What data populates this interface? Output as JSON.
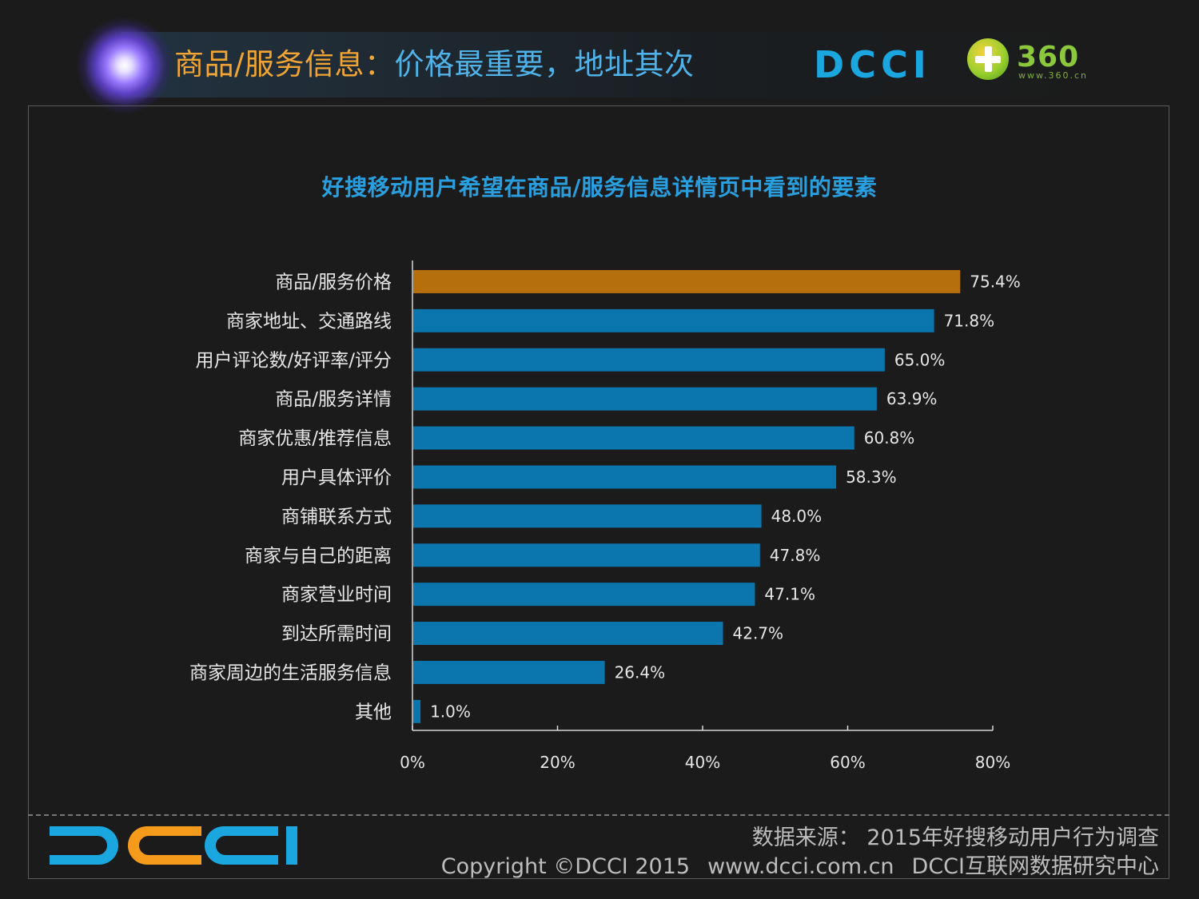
{
  "header": {
    "title_part1": "商品/服务信息：",
    "title_part2": "价格最重要，地址其次",
    "brand_dcci": "DCCI",
    "brand_360": "360",
    "brand_360_url": "www.360.cn"
  },
  "colors": {
    "highlight_bar": "#b56f0c",
    "default_bar": "#0b75ad",
    "title_orange": "#f2a532",
    "title_blue": "#4fb3ea"
  },
  "chart_data": {
    "type": "bar",
    "orientation": "horizontal",
    "title": "好搜移动用户希望在商品/服务信息详情页中看到的要素",
    "categories": [
      "商品/服务价格",
      "商家地址、交通路线",
      "用户评论数/好评率/评分",
      "商品/服务详情",
      "商家优惠/推荐信息",
      "用户具体评价",
      "商铺联系方式",
      "商家与自己的距离",
      "商家营业时间",
      "到达所需时间",
      "商家周边的生活服务信息",
      "其他"
    ],
    "values": [
      75.4,
      71.8,
      65.0,
      63.9,
      60.8,
      58.3,
      48.0,
      47.8,
      47.1,
      42.7,
      26.4,
      1.0
    ],
    "value_labels": [
      "75.4%",
      "71.8%",
      "65.0%",
      "63.9%",
      "60.8%",
      "58.3%",
      "48.0%",
      "47.8%",
      "47.1%",
      "42.7%",
      "26.4%",
      "1.0%"
    ],
    "highlight_index": 0,
    "xlim": [
      0,
      80
    ],
    "xticks": [
      0,
      20,
      40,
      60,
      80
    ],
    "xtick_labels": [
      "0%",
      "20%",
      "40%",
      "60%",
      "80%"
    ],
    "xlabel": "",
    "ylabel": "",
    "grid": false
  },
  "footer": {
    "logo": "DCCI",
    "source": "数据来源： 2015年好搜移动用户行为调查",
    "copyright": "Copyright ©DCCI 2015",
    "website": "www.dcci.com.cn",
    "org": "DCCI互联网数据研究中心"
  }
}
